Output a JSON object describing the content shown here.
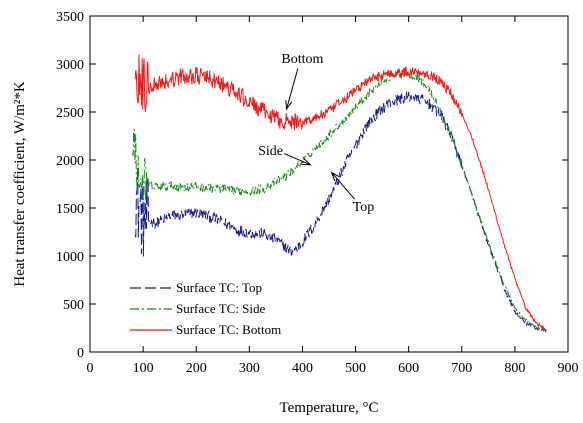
{
  "chart_data": {
    "type": "line",
    "xlabel": "Temperature, ",
    "xlabel_unit": "°C",
    "ylabel": "Heat transfer coefficient, W/m²*K",
    "xlim": [
      0,
      900
    ],
    "ylim": [
      0,
      3500
    ],
    "xticks": [
      0,
      100,
      200,
      300,
      400,
      500,
      600,
      700,
      800,
      900
    ],
    "yticks": [
      0,
      500,
      1000,
      1500,
      2000,
      2500,
      3000,
      3500
    ],
    "grid": false,
    "legend_position": "bottom-left",
    "series": [
      {
        "name": "Surface TC: Top",
        "color": "#1a1a8c",
        "dash": "long-dash",
        "noise": [
          450,
          60,
          60,
          20
        ],
        "points": [
          [
            85,
            1650
          ],
          [
            100,
            1380
          ],
          [
            125,
            1340
          ],
          [
            150,
            1420
          ],
          [
            175,
            1430
          ],
          [
            200,
            1450
          ],
          [
            225,
            1410
          ],
          [
            250,
            1350
          ],
          [
            275,
            1280
          ],
          [
            300,
            1240
          ],
          [
            325,
            1230
          ],
          [
            350,
            1170
          ],
          [
            370,
            1080
          ],
          [
            380,
            1050
          ],
          [
            390,
            1080
          ],
          [
            400,
            1150
          ],
          [
            420,
            1300
          ],
          [
            440,
            1500
          ],
          [
            460,
            1700
          ],
          [
            480,
            1950
          ],
          [
            500,
            2150
          ],
          [
            520,
            2350
          ],
          [
            540,
            2480
          ],
          [
            560,
            2580
          ],
          [
            580,
            2630
          ],
          [
            600,
            2660
          ],
          [
            620,
            2640
          ],
          [
            640,
            2580
          ],
          [
            660,
            2470
          ],
          [
            680,
            2250
          ],
          [
            700,
            1950
          ],
          [
            720,
            1620
          ],
          [
            740,
            1280
          ],
          [
            760,
            960
          ],
          [
            780,
            660
          ],
          [
            800,
            420
          ],
          [
            820,
            300
          ],
          [
            840,
            250
          ],
          [
            860,
            220
          ]
        ]
      },
      {
        "name": "Surface TC: Side",
        "color": "#188a18",
        "dash": "dash-dot",
        "noise": [
          280,
          50,
          40,
          15
        ],
        "points": [
          [
            80,
            2300
          ],
          [
            90,
            1850
          ],
          [
            100,
            1750
          ],
          [
            125,
            1720
          ],
          [
            150,
            1730
          ],
          [
            175,
            1720
          ],
          [
            200,
            1720
          ],
          [
            225,
            1710
          ],
          [
            250,
            1700
          ],
          [
            275,
            1680
          ],
          [
            300,
            1680
          ],
          [
            325,
            1700
          ],
          [
            350,
            1770
          ],
          [
            375,
            1860
          ],
          [
            400,
            1990
          ],
          [
            425,
            2120
          ],
          [
            450,
            2260
          ],
          [
            475,
            2400
          ],
          [
            500,
            2550
          ],
          [
            525,
            2700
          ],
          [
            550,
            2820
          ],
          [
            575,
            2880
          ],
          [
            600,
            2900
          ],
          [
            620,
            2850
          ],
          [
            640,
            2720
          ],
          [
            660,
            2520
          ],
          [
            680,
            2260
          ],
          [
            700,
            1950
          ],
          [
            720,
            1620
          ],
          [
            740,
            1300
          ],
          [
            760,
            990
          ],
          [
            780,
            700
          ],
          [
            800,
            460
          ],
          [
            820,
            330
          ],
          [
            840,
            260
          ],
          [
            860,
            230
          ]
        ]
      },
      {
        "name": "Surface TC: Bottom",
        "color": "#ee1c1c",
        "dash": "solid",
        "noise": [
          320,
          90,
          50,
          18
        ],
        "points": [
          [
            85,
            2850
          ],
          [
            100,
            2750
          ],
          [
            125,
            2800
          ],
          [
            150,
            2830
          ],
          [
            175,
            2870
          ],
          [
            200,
            2880
          ],
          [
            225,
            2850
          ],
          [
            250,
            2780
          ],
          [
            275,
            2700
          ],
          [
            300,
            2600
          ],
          [
            325,
            2510
          ],
          [
            350,
            2430
          ],
          [
            375,
            2390
          ],
          [
            400,
            2400
          ],
          [
            425,
            2440
          ],
          [
            450,
            2510
          ],
          [
            475,
            2610
          ],
          [
            500,
            2730
          ],
          [
            525,
            2830
          ],
          [
            550,
            2890
          ],
          [
            575,
            2910
          ],
          [
            600,
            2920
          ],
          [
            620,
            2920
          ],
          [
            640,
            2890
          ],
          [
            660,
            2820
          ],
          [
            680,
            2690
          ],
          [
            700,
            2490
          ],
          [
            720,
            2220
          ],
          [
            740,
            1880
          ],
          [
            760,
            1500
          ],
          [
            780,
            1120
          ],
          [
            800,
            760
          ],
          [
            820,
            460
          ],
          [
            840,
            300
          ],
          [
            860,
            230
          ]
        ]
      }
    ],
    "annotations": [
      {
        "text": "Bottom",
        "label_at": [
          400,
          3010
        ],
        "arrow_to": [
          370,
          2530
        ]
      },
      {
        "text": "Side",
        "label_at": [
          340,
          2050
        ],
        "arrow_to": [
          415,
          1950
        ]
      },
      {
        "text": "Top",
        "label_at": [
          515,
          1470
        ],
        "arrow_to": [
          455,
          1870
        ]
      }
    ]
  }
}
